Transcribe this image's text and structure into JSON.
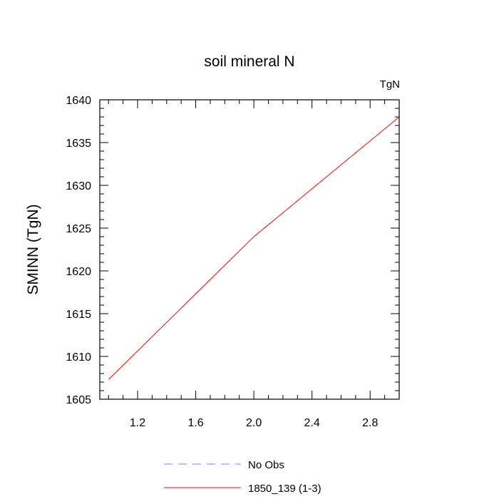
{
  "chart_data": {
    "type": "line",
    "title": "soil mineral N",
    "units_label": "TgN",
    "ylabel": "SMINN  (TgN)",
    "xlabel": "",
    "xlim": [
      0.94,
      3.0
    ],
    "ylim": [
      1605,
      1640
    ],
    "x_ticks": [
      1.2,
      1.6,
      2.0,
      2.4,
      2.8
    ],
    "x_tick_labels": [
      "1.2",
      "1.6",
      "2.0",
      "2.4",
      "2.8"
    ],
    "y_ticks": [
      1605,
      1610,
      1615,
      1620,
      1625,
      1630,
      1635,
      1640
    ],
    "y_tick_labels": [
      "1605",
      "1610",
      "1615",
      "1620",
      "1625",
      "1630",
      "1635",
      "1640"
    ],
    "grid": false,
    "legend_position": "bottom",
    "series": [
      {
        "name": "No Obs",
        "color": "#8080ff",
        "dash": "dashed",
        "x": [],
        "y": []
      },
      {
        "name": "1850_139 (1-3)",
        "color": "#ff0000",
        "dash": "solid",
        "x": [
          1,
          2,
          3
        ],
        "y": [
          1607.3,
          1624.0,
          1638.0
        ]
      }
    ]
  }
}
